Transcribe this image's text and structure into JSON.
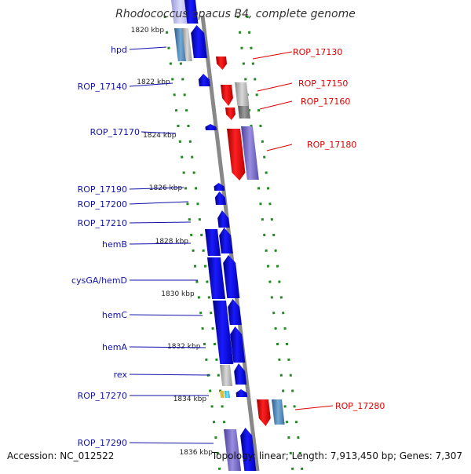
{
  "title": "Rhodococcus opacus B4, complete genome",
  "accession": "Accession: NC_012522",
  "summary": "Topology: linear; Length: 7,913,450 bp; Genes: 7,307",
  "colors": {
    "left_label": "#1111aa",
    "right_label": "#dd0000",
    "scale_tick": "#228822",
    "backbone": "#888888",
    "forward_gene": "#0000ee",
    "reverse_gene": "#ee0000"
  },
  "scale_ticks": [
    "1820 kbp",
    "1822 kbp",
    "1824 kbp",
    "1826 kbp",
    "1828 kbp",
    "1830 kbp",
    "1832 kbp",
    "1834 kbp",
    "1836 kbp"
  ],
  "left_genes": [
    "hpd",
    "ROP_17140",
    "ROP_17170",
    "ROP_17190",
    "ROP_17200",
    "ROP_17210",
    "hemB",
    "cysGA/hemD",
    "hemC",
    "hemA",
    "rex",
    "ROP_17270",
    "ROP_17290"
  ],
  "right_genes": [
    "ROP_17130",
    "ROP_17150",
    "ROP_17160",
    "ROP_17180",
    "ROP_17280"
  ]
}
